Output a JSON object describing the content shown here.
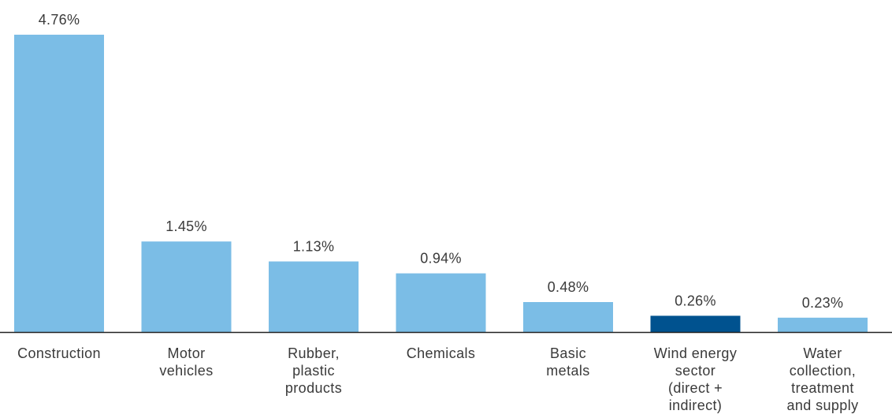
{
  "chart_data": {
    "type": "bar",
    "categories": [
      [
        "Construction"
      ],
      [
        "Motor",
        "vehicles"
      ],
      [
        "Rubber,",
        "plastic",
        "products"
      ],
      [
        "Chemicals"
      ],
      [
        "Basic",
        "metals"
      ],
      [
        "Wind energy",
        "sector",
        "(direct +",
        "indirect)"
      ],
      [
        "Water",
        "collection,",
        "treatment",
        "and supply"
      ]
    ],
    "values": [
      4.76,
      1.45,
      1.13,
      0.94,
      0.48,
      0.26,
      0.23
    ],
    "value_labels": [
      "4.76%",
      "1.45%",
      "1.13%",
      "0.94%",
      "0.48%",
      "0.26%",
      "0.23%"
    ],
    "unit": "%",
    "highlight_index": 5,
    "colors": {
      "bar": "#7bbde6",
      "highlight": "#00528f",
      "axis": "#222222"
    },
    "ylim": [
      0,
      4.76
    ],
    "grid": false,
    "legend": "none",
    "title": "",
    "xlabel": "",
    "ylabel": ""
  }
}
